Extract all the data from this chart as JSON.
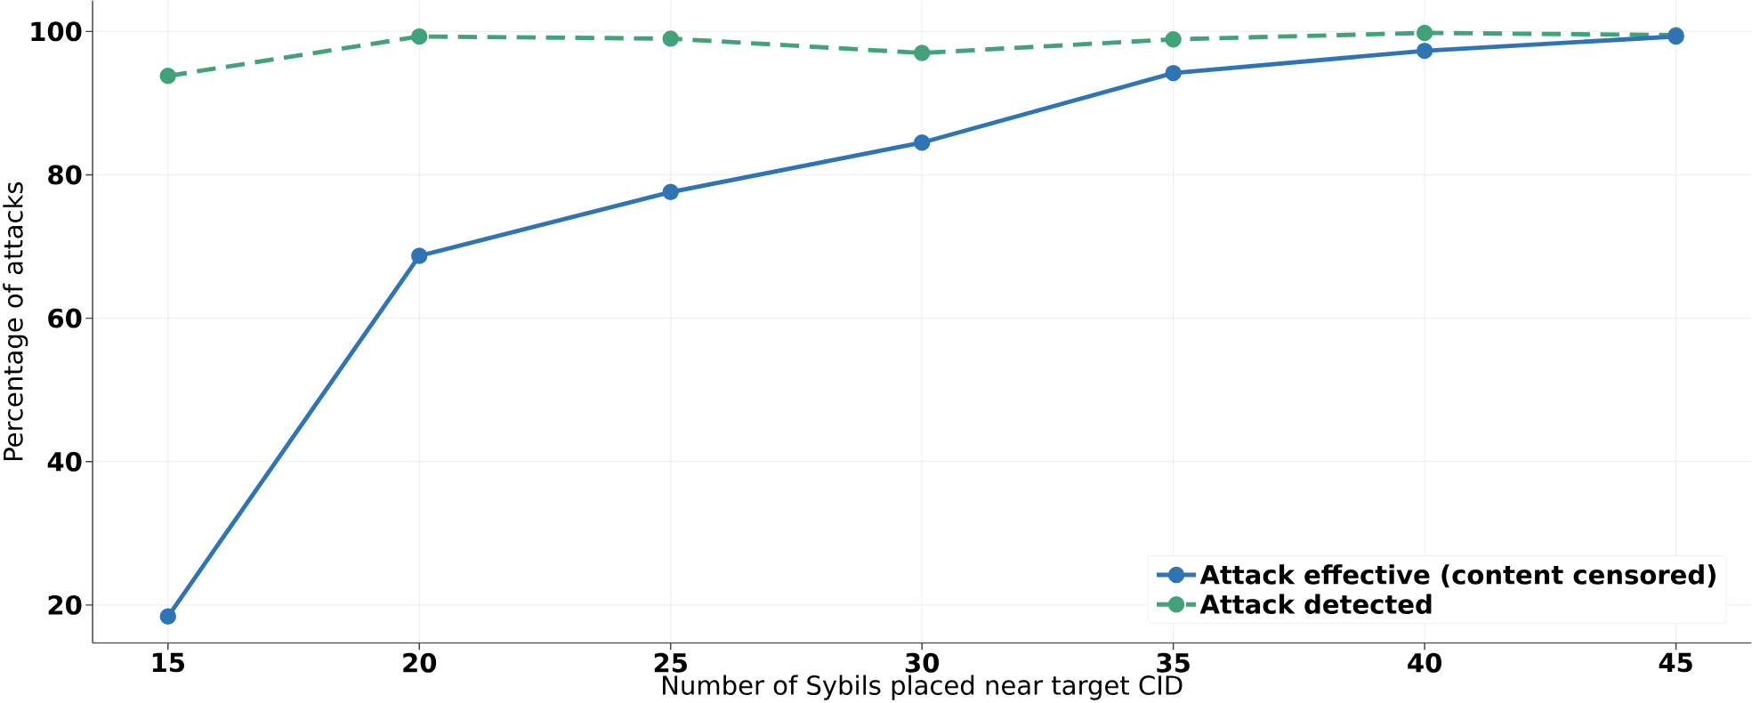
{
  "chart_data": {
    "type": "line",
    "xlabel": "Number of Sybils placed near target CID",
    "ylabel": "Percentage of attacks",
    "x": [
      15,
      20,
      25,
      30,
      35,
      40,
      45
    ],
    "series": [
      {
        "name": "Attack effective (content censored)",
        "color": "#2f74b5",
        "line_style": "solid",
        "values": [
          18.4,
          68.7,
          77.6,
          84.5,
          94.2,
          97.3,
          99.3
        ]
      },
      {
        "name": "Attack detected",
        "color": "#42a27a",
        "line_style": "dashed",
        "values": [
          93.8,
          99.3,
          99.0,
          97.0,
          98.9,
          99.8,
          99.5
        ]
      }
    ],
    "xlim": [
      13.5,
      46.5
    ],
    "ylim": [
      14.7,
      104.3
    ],
    "xticks": [
      15,
      20,
      25,
      30,
      35,
      40,
      45
    ],
    "yticks": [
      20,
      40,
      60,
      80,
      100
    ],
    "grid": true,
    "legend": "bottom right",
    "marker": "circle"
  }
}
